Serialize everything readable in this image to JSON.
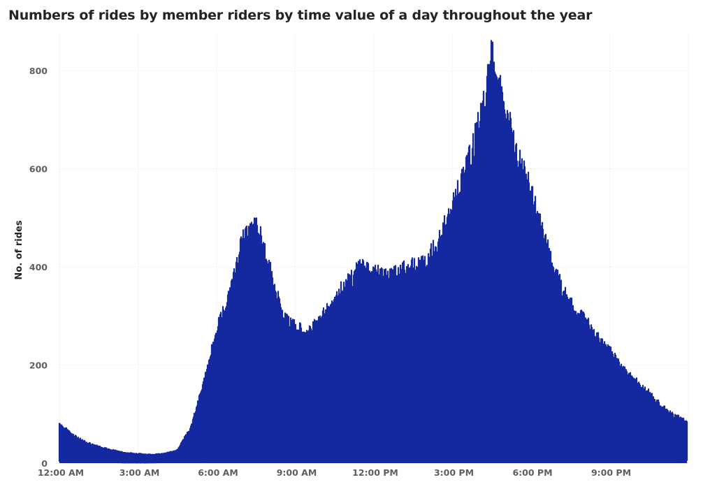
{
  "chart_data": {
    "type": "area",
    "title": "Numbers of rides by member riders by time value of a day throughout the year",
    "xlabel": "",
    "ylabel": "No. of rides",
    "x_tick_labels": [
      "12:00 AM",
      "3:00 AM",
      "6:00 AM",
      "9:00 AM",
      "12:00 PM",
      "3:00 PM",
      "6:00 PM",
      "9:00 PM"
    ],
    "y_ticks": [
      0,
      200,
      400,
      600,
      800
    ],
    "ylim": [
      0,
      880
    ],
    "xlim_hours": [
      0,
      24
    ],
    "grid": true,
    "series_color": "#1428a0",
    "series": [
      {
        "x_hours": [
          0,
          0.5,
          1,
          1.5,
          2,
          2.5,
          3,
          3.5,
          4,
          4.5,
          5,
          5.5,
          6,
          6.5,
          7,
          7.5,
          8,
          8.5,
          9,
          9.5,
          10,
          10.5,
          11,
          11.5,
          12,
          12.5,
          13,
          13.5,
          14,
          14.5,
          15,
          15.5,
          16,
          16.5,
          17,
          17.5,
          18,
          18.5,
          19,
          19.5,
          20,
          20.5,
          21,
          21.5,
          22,
          22.5,
          23,
          23.5,
          23.95
        ],
        "max_values": [
          85,
          60,
          45,
          35,
          28,
          22,
          20,
          18,
          20,
          28,
          75,
          170,
          285,
          360,
          480,
          520,
          420,
          320,
          290,
          280,
          310,
          350,
          390,
          420,
          410,
          400,
          410,
          420,
          430,
          480,
          550,
          620,
          720,
          870,
          760,
          650,
          580,
          480,
          400,
          340,
          310,
          270,
          240,
          200,
          175,
          150,
          120,
          100,
          90
        ],
        "min_values": [
          5,
          3,
          2,
          2,
          2,
          1,
          1,
          1,
          2,
          3,
          5,
          10,
          18,
          28,
          38,
          40,
          42,
          30,
          22,
          20,
          24,
          26,
          30,
          33,
          32,
          32,
          35,
          38,
          40,
          48,
          55,
          62,
          70,
          76,
          70,
          62,
          58,
          52,
          45,
          38,
          32,
          22,
          16,
          12,
          10,
          8,
          6,
          5,
          5
        ]
      }
    ]
  }
}
